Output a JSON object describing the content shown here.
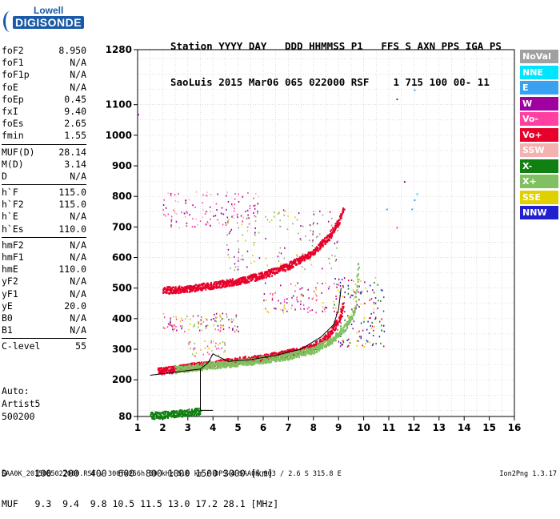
{
  "logo": {
    "line1": "Lowell",
    "line2": "DIGISONDE"
  },
  "header": {
    "line1": "Station YYYY DAY   DDD HHMMSS P1   FFS S AXN PPS IGA PS",
    "line2": "SaoLuis 2015 Mar06 065 022000 RSF    1 715 100 00- 11"
  },
  "params": [
    [
      [
        "foF2",
        "8.950"
      ],
      [
        "foF1",
        "N/A"
      ],
      [
        "foF1p",
        "N/A"
      ],
      [
        "foE",
        "N/A"
      ],
      [
        "foEp",
        "0.45"
      ],
      [
        "fxI",
        "9.40"
      ],
      [
        "foEs",
        "2.65"
      ],
      [
        "fmin",
        "1.55"
      ]
    ],
    [
      [
        "MUF(D)",
        "28.14"
      ],
      [
        "M(D)",
        "3.14"
      ],
      [
        "D",
        "N/A"
      ]
    ],
    [
      [
        "h`F",
        "115.0"
      ],
      [
        "h`F2",
        "115.0"
      ],
      [
        "h`E",
        "N/A"
      ],
      [
        "h`Es",
        "110.0"
      ]
    ],
    [
      [
        "hmF2",
        "N/A"
      ],
      [
        "hmF1",
        "N/A"
      ],
      [
        "hmE",
        "110.0"
      ],
      [
        "yF2",
        "N/A"
      ],
      [
        "yF1",
        "N/A"
      ],
      [
        "yE",
        "20.0"
      ],
      [
        "B0",
        "N/A"
      ],
      [
        "B1",
        "N/A"
      ]
    ],
    [
      [
        "C-level",
        "55"
      ]
    ]
  ],
  "auto": {
    "line1": "Auto:",
    "line2": "Artist5",
    "line3": "500200"
  },
  "legend": [
    {
      "label": "NoVal",
      "color": "#a0a0a0"
    },
    {
      "label": "NNE",
      "color": "#00e5ff"
    },
    {
      "label": "E",
      "color": "#3aa0f0"
    },
    {
      "label": "W",
      "color": "#a000a0"
    },
    {
      "label": "Vo-",
      "color": "#ff40a0"
    },
    {
      "label": "Vo+",
      "color": "#e8002a"
    },
    {
      "label": "SSW",
      "color": "#f5b0b0"
    },
    {
      "label": "X-",
      "color": "#108010"
    },
    {
      "label": "X+",
      "color": "#80c060"
    },
    {
      "label": "SSE",
      "color": "#e0d000"
    },
    {
      "label": "NNW",
      "color": "#2020d0"
    }
  ],
  "dmuf": {
    "d_line": "D     100  200  400  600  800 1000 1500 3000 [km]",
    "muf_line": "MUF   9.3  9.4  9.8 10.5 11.5 13.0 17.2 28.1 [MHz]"
  },
  "footer": "SAA0K_2015065022000.RSF / 300fx256h 50 kHz 5.0 km / DPS-4 SAA0K 903 / 2.6 S 315.8 E",
  "version": "Ion2Png 1.3.17",
  "chart_data": {
    "type": "scatter",
    "xlim": [
      1,
      16
    ],
    "ylim": [
      80,
      1280
    ],
    "x_ticks": [
      1,
      2,
      3,
      4,
      5,
      6,
      7,
      8,
      9,
      10,
      11,
      12,
      13,
      14,
      15,
      16
    ],
    "y_ticks": [
      80,
      200,
      300,
      400,
      500,
      600,
      700,
      800,
      900,
      1000,
      1100,
      1280
    ],
    "grid": true,
    "x_units": "MHz",
    "y_units": "km",
    "traces": [
      {
        "name": "F-layer O trace",
        "color": "#e8002a",
        "points": [
          [
            1.8,
            230
          ],
          [
            2.5,
            237
          ],
          [
            3.0,
            245
          ],
          [
            4.0,
            255
          ],
          [
            5.0,
            265
          ],
          [
            6.0,
            275
          ],
          [
            7.0,
            290
          ],
          [
            7.8,
            305
          ],
          [
            8.3,
            325
          ],
          [
            8.7,
            360
          ],
          [
            9.0,
            400
          ],
          [
            9.2,
            450
          ]
        ]
      },
      {
        "name": "F-layer X trace",
        "color": "#80c060",
        "points": [
          [
            2.5,
            235
          ],
          [
            4.0,
            250
          ],
          [
            5.5,
            262
          ],
          [
            7.0,
            280
          ],
          [
            8.0,
            300
          ],
          [
            8.7,
            330
          ],
          [
            9.2,
            370
          ],
          [
            9.6,
            420
          ],
          [
            9.8,
            600
          ]
        ]
      },
      {
        "name": "F-layer second hop",
        "color": "#e8002a",
        "points": [
          [
            2.0,
            495
          ],
          [
            3.0,
            500
          ],
          [
            4.0,
            512
          ],
          [
            5.0,
            525
          ],
          [
            6.0,
            545
          ],
          [
            7.0,
            575
          ],
          [
            8.0,
            620
          ],
          [
            8.6,
            670
          ],
          [
            9.0,
            720
          ],
          [
            9.2,
            760
          ]
        ]
      },
      {
        "name": "Es trace",
        "color": "#108010",
        "points": [
          [
            1.5,
            85
          ],
          [
            2.0,
            88
          ],
          [
            2.5,
            92
          ],
          [
            3.0,
            95
          ],
          [
            3.5,
            100
          ]
        ]
      }
    ],
    "profile": [
      [
        1.5,
        215
      ],
      [
        2.0,
        220
      ],
      [
        3.0,
        230
      ],
      [
        3.5,
        235
      ],
      [
        3.8,
        255
      ],
      [
        4.0,
        285
      ],
      [
        4.6,
        260
      ],
      [
        5.5,
        266
      ],
      [
        6.5,
        280
      ],
      [
        7.5,
        300
      ],
      [
        8.3,
        340
      ],
      [
        8.8,
        380
      ],
      [
        9.0,
        430
      ],
      [
        9.1,
        500
      ]
    ]
  }
}
